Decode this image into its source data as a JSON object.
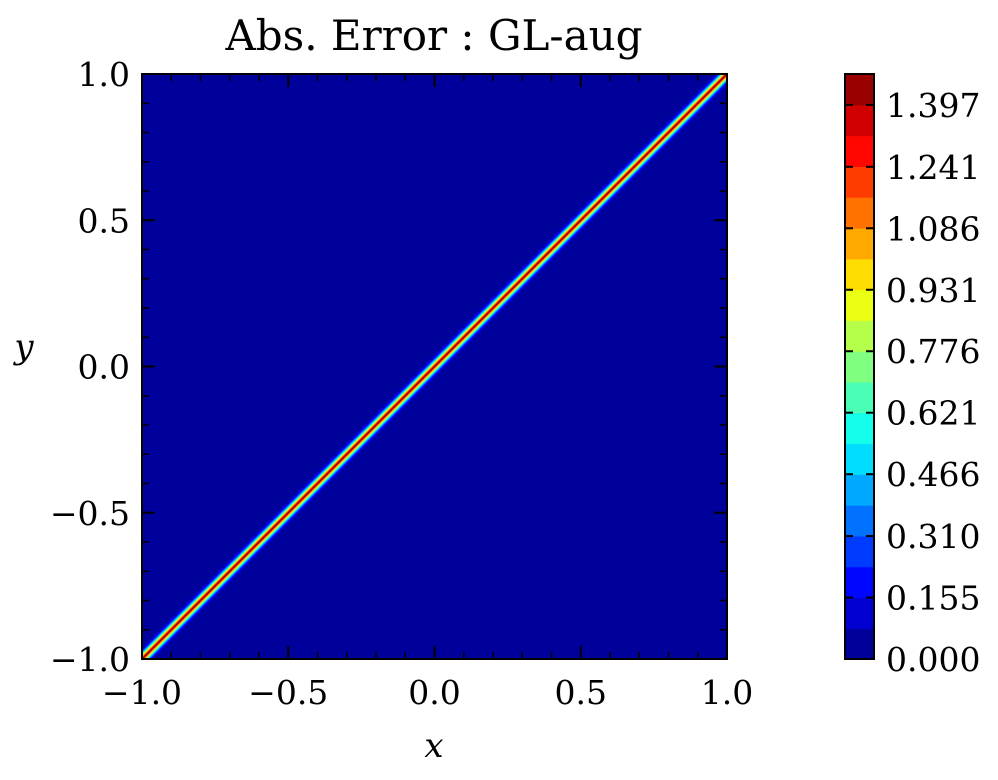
{
  "chart_data": {
    "type": "heatmap",
    "title": "Abs. Error : GL-aug",
    "xlabel": "x",
    "ylabel": "y",
    "xlim": [
      -1.0,
      1.0
    ],
    "ylim": [
      -1.0,
      1.0
    ],
    "x_ticks": [
      -1.0,
      -0.5,
      0.0,
      0.5,
      1.0
    ],
    "y_ticks": [
      -1.0,
      -0.5,
      0.0,
      0.5,
      1.0
    ],
    "x_tick_labels": [
      "−1.0",
      "−0.5",
      "0.0",
      "0.5",
      "1.0"
    ],
    "y_tick_labels": [
      "−1.0",
      "−0.5",
      "0.0",
      "0.5",
      "1.0"
    ],
    "grid": false,
    "colormap": "jet",
    "feature": {
      "description_type": "ridge",
      "line": "y = x",
      "peak_value": 1.47,
      "background_value": 0.0
    },
    "colorbar": {
      "min": 0.0,
      "max": 1.475,
      "levels": 19,
      "tick_values": [
        0.0,
        0.155,
        0.31,
        0.466,
        0.621,
        0.776,
        0.931,
        1.086,
        1.241,
        1.397
      ],
      "tick_labels": [
        "0.000",
        "0.155",
        "0.310",
        "0.466",
        "0.621",
        "0.776",
        "0.931",
        "1.086",
        "1.241",
        "1.397"
      ],
      "placement": "right"
    }
  }
}
